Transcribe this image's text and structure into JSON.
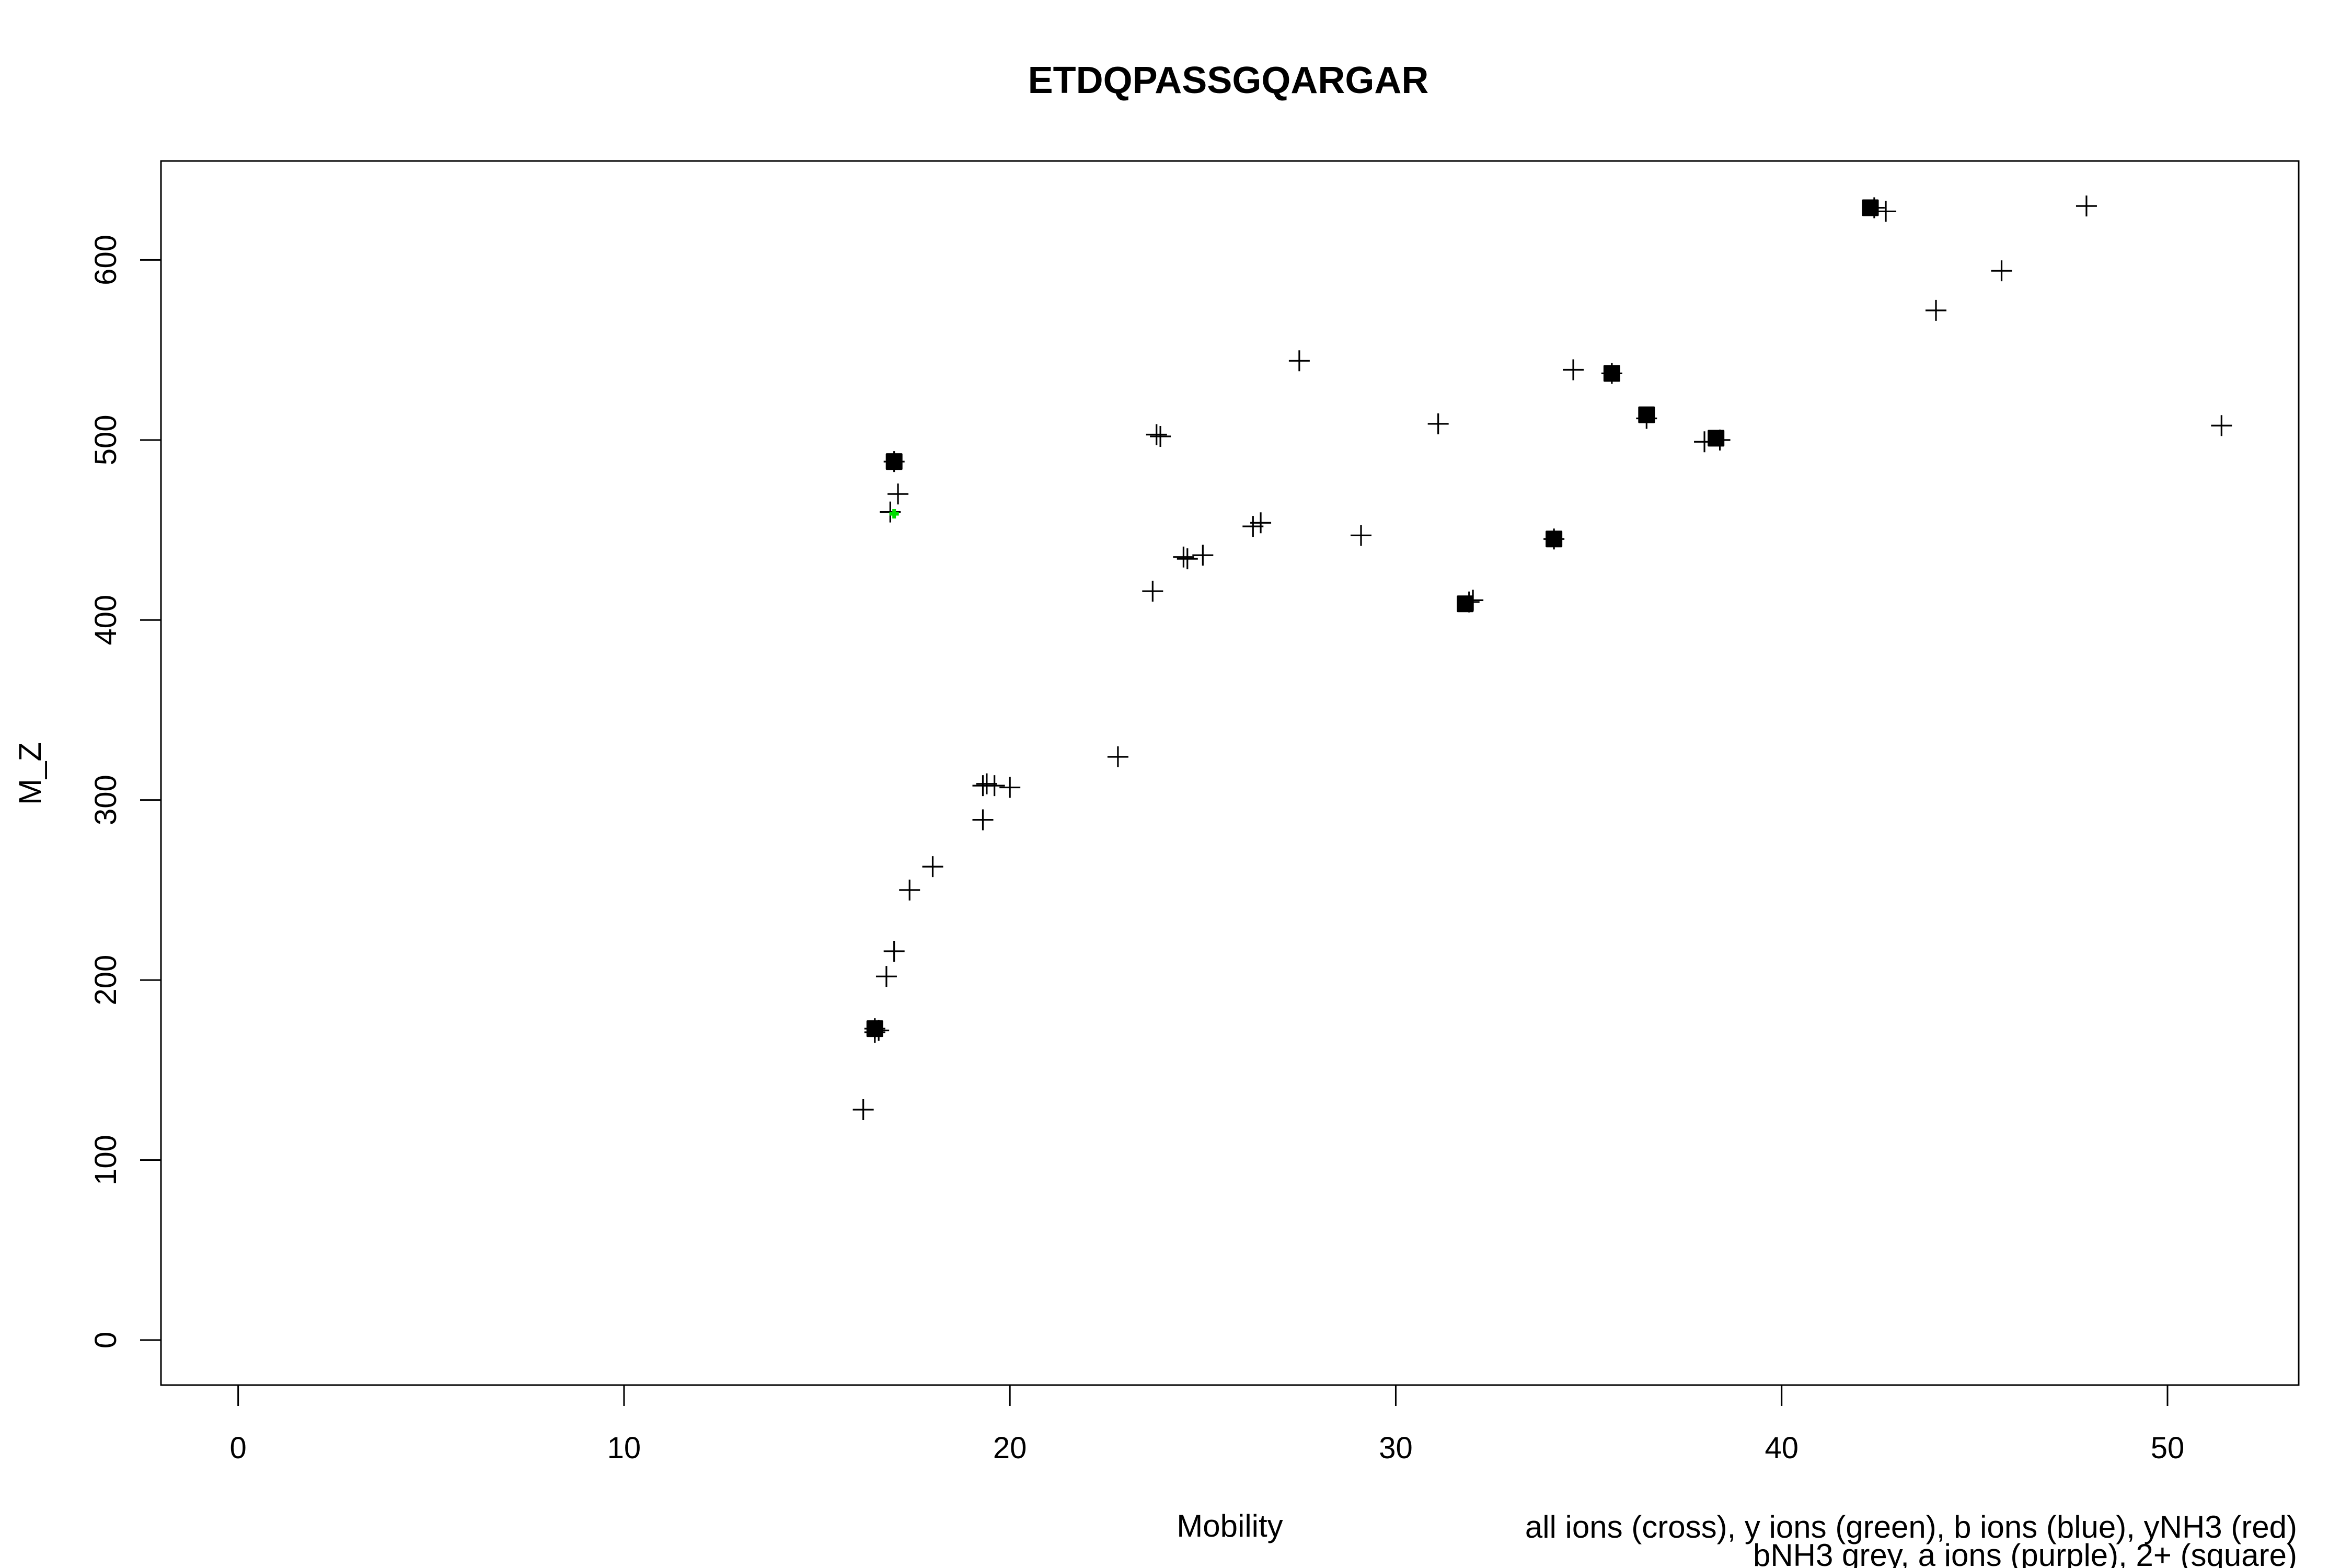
{
  "chart_data": {
    "type": "scatter",
    "title": "ETDQPASSGQARGAR",
    "xlabel": "Mobility",
    "ylabel": "M_Z",
    "xlim": [
      -2,
      53.4
    ],
    "ylim": [
      -25,
      655
    ],
    "xticks": [
      0,
      10,
      20,
      30,
      40,
      50
    ],
    "yticks": [
      0,
      100,
      200,
      300,
      400,
      500,
      600
    ],
    "grid": false,
    "legend_notes": [
      "all ions (cross), y ions (green), b ions (blue), yNH3 (red)",
      "bNH3 grey, a ions (purple), 2+ (square)"
    ],
    "marker_colors": {
      "all": "#000000",
      "y": "#00dd00"
    },
    "series": [
      {
        "marker": "cross",
        "points": [
          [
            16.2,
            128
          ],
          [
            16.6,
            172
          ],
          [
            16.5,
            171
          ],
          [
            16.8,
            202
          ],
          [
            17.0,
            216
          ],
          [
            17.4,
            250
          ],
          [
            18.0,
            263
          ],
          [
            19.3,
            289
          ],
          [
            19.3,
            308
          ],
          [
            19.4,
            309
          ],
          [
            19.6,
            308
          ],
          [
            20.0,
            307
          ],
          [
            22.8,
            324
          ],
          [
            23.7,
            416
          ],
          [
            23.8,
            503
          ],
          [
            23.9,
            502
          ],
          [
            24.5,
            435
          ],
          [
            24.6,
            434
          ],
          [
            25.0,
            436
          ],
          [
            26.3,
            452
          ],
          [
            26.5,
            454
          ],
          [
            27.5,
            544
          ],
          [
            29.1,
            447
          ],
          [
            31.1,
            509
          ],
          [
            31.9,
            410
          ],
          [
            32.0,
            411
          ],
          [
            34.6,
            539
          ],
          [
            35.6,
            537
          ],
          [
            36.5,
            512
          ],
          [
            38.0,
            499
          ],
          [
            38.4,
            500
          ],
          [
            42.7,
            627
          ],
          [
            44.0,
            572
          ],
          [
            45.7,
            594
          ],
          [
            47.9,
            630
          ],
          [
            51.4,
            508
          ],
          [
            16.9,
            460
          ],
          [
            17.1,
            470
          ],
          [
            17.0,
            488
          ],
          [
            16.5,
            173
          ],
          [
            34.1,
            445
          ],
          [
            42.4,
            629
          ]
        ]
      },
      {
        "marker": "square",
        "points": [
          [
            17.0,
            488
          ],
          [
            16.5,
            173
          ],
          [
            31.8,
            409
          ],
          [
            34.1,
            445
          ],
          [
            35.6,
            537
          ],
          [
            36.5,
            514
          ],
          [
            38.3,
            501
          ],
          [
            42.3,
            629
          ]
        ]
      },
      {
        "marker": "y",
        "points": [
          [
            17.0,
            459
          ]
        ]
      }
    ]
  }
}
